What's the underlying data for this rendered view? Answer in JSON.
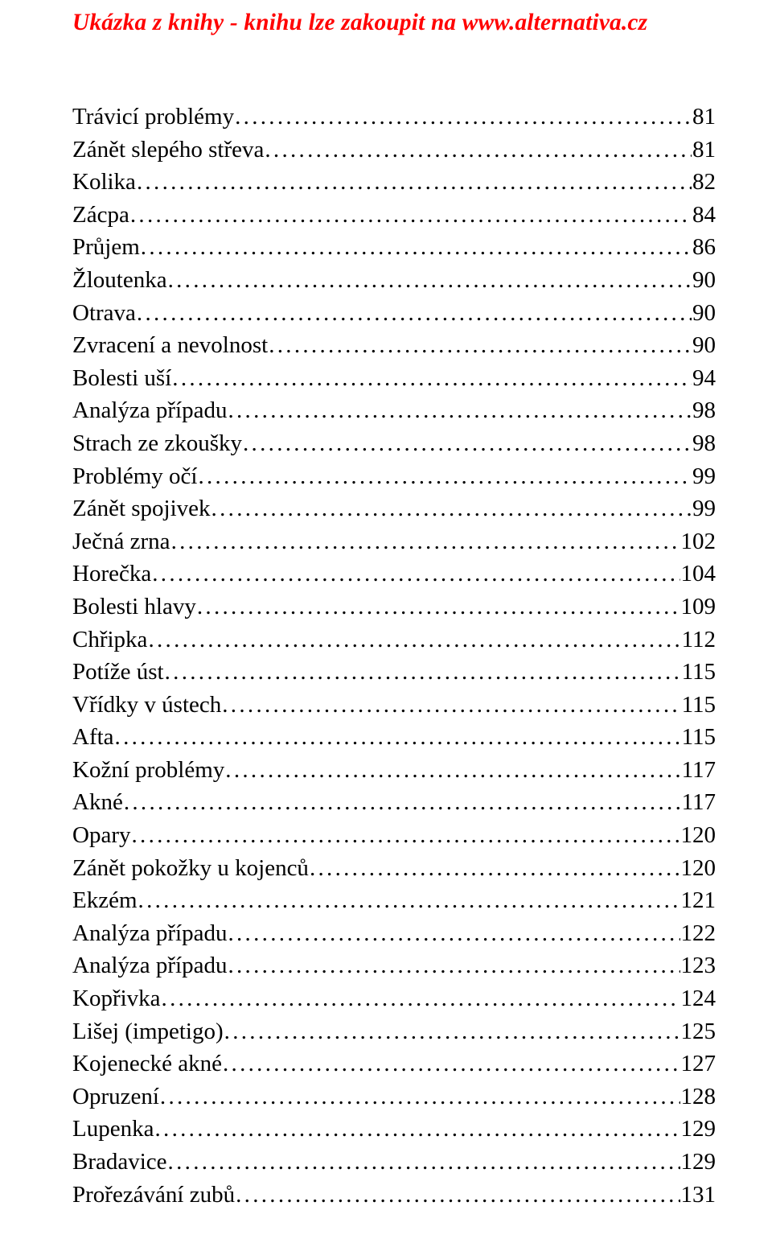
{
  "header": "Ukázka z knihy - knihu lze zakoupit na www.alternativa.cz",
  "toc": [
    {
      "title": "Trávicí problémy",
      "page": "81"
    },
    {
      "title": "Zánět slepého střeva",
      "page": "81"
    },
    {
      "title": "Kolika",
      "page": "82"
    },
    {
      "title": "Zácpa",
      "page": "84"
    },
    {
      "title": "Průjem",
      "page": "86"
    },
    {
      "title": "Žloutenka",
      "page": "90"
    },
    {
      "title": "Otrava",
      "page": "90"
    },
    {
      "title": "Zvracení a nevolnost",
      "page": "90"
    },
    {
      "title": "Bolesti uší",
      "page": "94"
    },
    {
      "title": "Analýza případu",
      "page": "98"
    },
    {
      "title": "Strach ze zkoušky",
      "page": "98"
    },
    {
      "title": "Problémy očí",
      "page": "99"
    },
    {
      "title": "Zánět spojivek",
      "page": "99"
    },
    {
      "title": "Ječná zrna",
      "page": "102"
    },
    {
      "title": "Horečka",
      "page": "104"
    },
    {
      "title": "Bolesti hlavy",
      "page": "109"
    },
    {
      "title": "Chřipka",
      "page": "112"
    },
    {
      "title": "Potíže úst",
      "page": "115"
    },
    {
      "title": "Vřídky v ústech",
      "page": "115"
    },
    {
      "title": "Afta",
      "page": "115"
    },
    {
      "title": "Kožní problémy",
      "page": "117"
    },
    {
      "title": "Akné",
      "page": "117"
    },
    {
      "title": "Opary",
      "page": "120"
    },
    {
      "title": "Zánět pokožky u kojenců",
      "page": "120"
    },
    {
      "title": "Ekzém",
      "page": "121"
    },
    {
      "title": "Analýza případu",
      "page": "122"
    },
    {
      "title": "Analýza případu",
      "page": "123"
    },
    {
      "title": "Kopřivka",
      "page": "124"
    },
    {
      "title": "Lišej (impetigo)",
      "page": "125"
    },
    {
      "title": "Kojenecké akné",
      "page": "127"
    },
    {
      "title": "Opruzení",
      "page": "128"
    },
    {
      "title": "Lupenka",
      "page": "129"
    },
    {
      "title": "Bradavice",
      "page": "129"
    },
    {
      "title": "Prořezávání zubů",
      "page": "131"
    }
  ]
}
